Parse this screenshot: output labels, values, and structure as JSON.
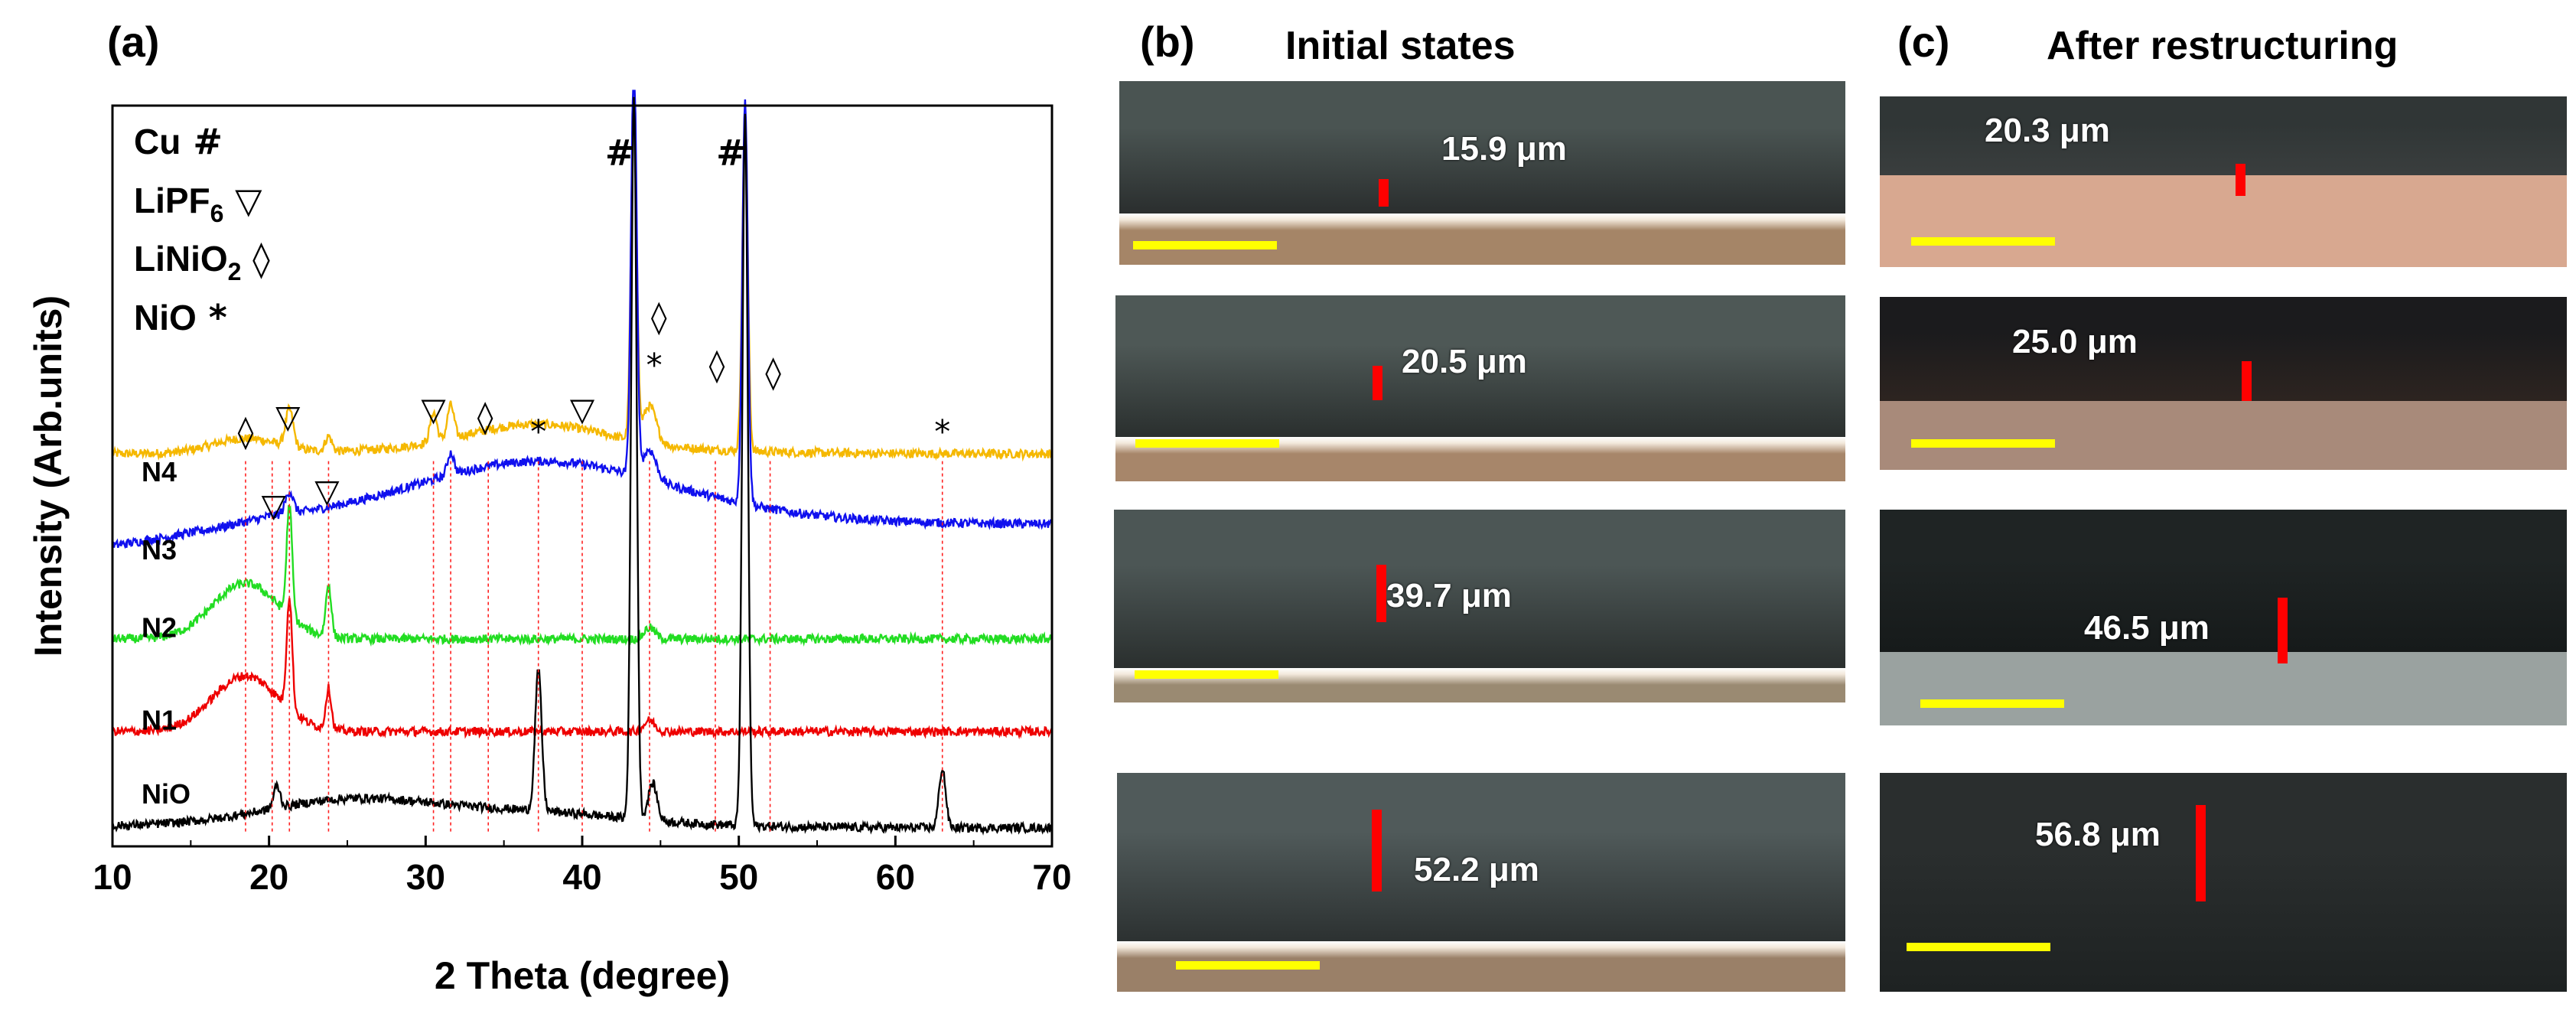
{
  "panels": {
    "a": {
      "label": "(a)"
    },
    "b": {
      "label": "(b)",
      "title": "Initial states",
      "images": [
        {
          "thickness": "15.9 μm"
        },
        {
          "thickness": "20.5 μm"
        },
        {
          "thickness": "39.7 μm"
        },
        {
          "thickness": "52.2 μm"
        }
      ]
    },
    "c": {
      "label": "(c)",
      "title": "After restructuring",
      "images": [
        {
          "thickness": "20.3 μm"
        },
        {
          "thickness": "25.0 μm"
        },
        {
          "thickness": "46.5 μm"
        },
        {
          "thickness": "56.8 μm"
        }
      ]
    }
  },
  "chart_data": {
    "type": "line",
    "title": "",
    "xlabel": "2 Theta (degree)",
    "ylabel": "Intensity (Arb.units)",
    "xlim": [
      10,
      70
    ],
    "xticks": [
      10,
      20,
      30,
      40,
      50,
      60,
      70
    ],
    "legend": [
      {
        "name": "Cu",
        "symbol": "#"
      },
      {
        "name": "LiPF",
        "sub": "6",
        "symbol": "▽"
      },
      {
        "name": "LiNiO",
        "sub": "2",
        "symbol": "◊"
      },
      {
        "name": "NiO",
        "symbol": "*"
      }
    ],
    "reference_lines_2theta": [
      18.5,
      20.2,
      21.3,
      23.8,
      30.5,
      31.6,
      34.0,
      37.2,
      40.0,
      44.3,
      48.5,
      52.0,
      63.0
    ],
    "series": [
      {
        "name": "N4",
        "color": "#f5b800",
        "baseline": 0.53,
        "peaks": [
          [
            21.3,
            0.05,
            0.35
          ],
          [
            23.8,
            0.02,
            0.3
          ],
          [
            30.5,
            0.04,
            0.3
          ],
          [
            31.6,
            0.045,
            0.3
          ],
          [
            44.3,
            0.05,
            0.6
          ]
        ],
        "humps": [
          [
            18.5,
            0.02,
            3
          ],
          [
            37,
            0.03,
            6
          ]
        ]
      },
      {
        "name": "N3",
        "color": "#1010ee",
        "baseline": 0.435,
        "peaks": [
          [
            21.3,
            0.03,
            0.35
          ],
          [
            31.6,
            0.03,
            0.3
          ],
          [
            44.3,
            0.04,
            0.6
          ]
        ],
        "humps": [
          [
            37,
            0.04,
            10
          ]
        ]
      },
      {
        "name": "N2",
        "color": "#22dd22",
        "baseline": 0.28,
        "peaks": [
          [
            21.3,
            0.15,
            0.25
          ],
          [
            23.8,
            0.07,
            0.25
          ],
          [
            44.3,
            0.015,
            0.5
          ]
        ],
        "humps": [
          [
            18.5,
            0.075,
            3.0
          ]
        ]
      },
      {
        "name": "N1",
        "color": "#ee0000",
        "baseline": 0.155,
        "peaks": [
          [
            21.3,
            0.15,
            0.25
          ],
          [
            23.8,
            0.055,
            0.25
          ],
          [
            44.3,
            0.015,
            0.5
          ]
        ],
        "humps": [
          [
            18.5,
            0.075,
            3.0
          ]
        ]
      },
      {
        "name": "NiO",
        "color": "#000000",
        "baseline": 0.025,
        "peaks": [
          [
            20.5,
            0.03,
            0.3
          ],
          [
            37.2,
            0.19,
            0.3
          ],
          [
            44.5,
            0.05,
            0.4
          ],
          [
            63.0,
            0.08,
            0.3
          ]
        ],
        "humps": [
          [
            25,
            0.025,
            7
          ],
          [
            37,
            0.01,
            8
          ]
        ]
      }
    ],
    "cu_peaks": [
      {
        "x": 43.3,
        "height": 1.0,
        "width": 0.25
      },
      {
        "x": 50.4,
        "height": 0.98,
        "width": 0.25
      }
    ],
    "annotations": [
      {
        "text": "#",
        "x": 42.4,
        "y": 0.92
      },
      {
        "text": "#",
        "x": 49.5,
        "y": 0.92
      },
      {
        "text": "◊",
        "x": 18.5,
        "y": 0.545
      },
      {
        "text": "▽",
        "x": 21.2,
        "y": 0.565
      },
      {
        "text": "▽",
        "x": 20.3,
        "y": 0.445
      },
      {
        "text": "▽",
        "x": 23.7,
        "y": 0.465
      },
      {
        "text": "▽",
        "x": 30.5,
        "y": 0.575
      },
      {
        "text": "◊",
        "x": 33.8,
        "y": 0.565
      },
      {
        "text": "*",
        "x": 37.2,
        "y": 0.545
      },
      {
        "text": "▽",
        "x": 40.0,
        "y": 0.575
      },
      {
        "text": "◊",
        "x": 44.9,
        "y": 0.7
      },
      {
        "text": "*",
        "x": 44.6,
        "y": 0.635
      },
      {
        "text": "◊",
        "x": 48.6,
        "y": 0.635
      },
      {
        "text": "◊",
        "x": 52.2,
        "y": 0.625
      },
      {
        "text": "*",
        "x": 63.0,
        "y": 0.545
      }
    ]
  },
  "colors": {
    "scale_bar": "#ffff00",
    "thickness_bar": "#ff0000",
    "micro_b": [
      {
        "top": "#4a5452",
        "mid": "#2a2e2e",
        "base": "#a58567"
      },
      {
        "top": "#4e5856",
        "mid": "#2a2f2e",
        "base": "#a7866a"
      },
      {
        "top": "#4c5655",
        "mid": "#2a2f2e",
        "base": "#9a8a72"
      },
      {
        "top": "#505a5a",
        "mid": "#2c3131",
        "base": "#9a8068"
      }
    ],
    "micro_c": [
      {
        "top": "#303636",
        "mid": "#3a3e3e",
        "base": "#d8a890"
      },
      {
        "top": "#1b1b1d",
        "mid": "#2d2420",
        "base": "#a88a7a"
      },
      {
        "top": "#1f2424",
        "mid": "#161a1a",
        "base": "#9aa2a0"
      },
      {
        "top": "#2a2e2e",
        "mid": "#1e2222",
        "base": "#8d9694"
      }
    ]
  }
}
